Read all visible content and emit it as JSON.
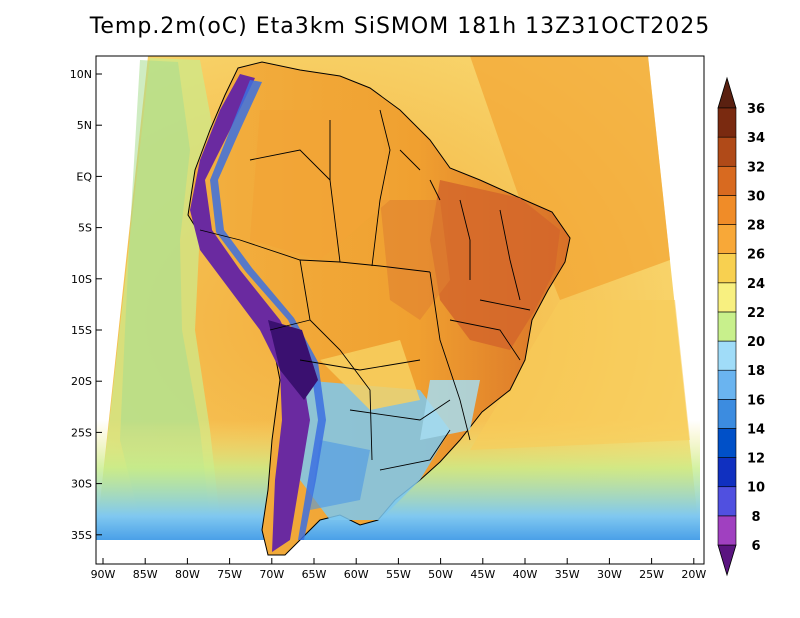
{
  "title": "Temp.2m(oC) Eta3km SiSMOM 181h 13Z31OCT2025",
  "colors": {
    "ocean_warm": "#f2a030",
    "ocean_mid": "#f8c85a",
    "ocean_cool": "#f7ea80",
    "ocean_cold": "#d4ee90",
    "land_hot": "#d8702a",
    "land_warm": "#f0a838",
    "cold_blue": "#3c8ce0",
    "andes_purple": "#6a2aa0",
    "border": "#000000"
  },
  "lat_ticks": [
    "10N",
    "5N",
    "EQ",
    "5S",
    "10S",
    "15S",
    "20S",
    "25S",
    "30S",
    "35S"
  ],
  "lon_ticks": [
    "90W",
    "85W",
    "80W",
    "75W",
    "70W",
    "65W",
    "60W",
    "55W",
    "50W",
    "45W",
    "40W",
    "35W",
    "30W",
    "25W",
    "20W"
  ],
  "colorbar": {
    "levels": [
      6,
      8,
      10,
      12,
      14,
      16,
      18,
      20,
      22,
      24,
      26,
      28,
      30,
      32,
      34,
      36
    ],
    "colors": [
      "#7a1fa0",
      "#a040c0",
      "#5050e0",
      "#1030c0",
      "#0050c8",
      "#3c8ce0",
      "#6ab4f0",
      "#a0dcf8",
      "#c8f08c",
      "#f8f080",
      "#f8d050",
      "#f8a838",
      "#f08c28",
      "#d86a20",
      "#b04a18",
      "#7a2a10"
    ],
    "top_color": "#5a2010",
    "bottom_color": "#5a1480"
  }
}
